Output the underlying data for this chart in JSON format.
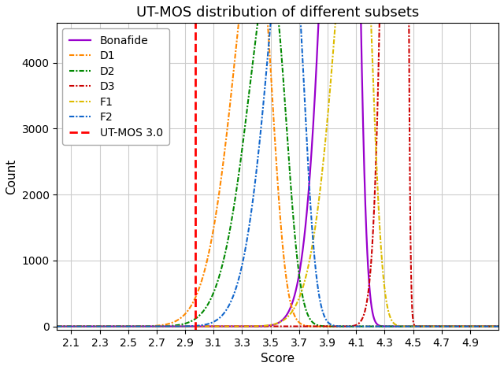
{
  "title": "UT-MOS distribution of different subsets",
  "xlabel": "Score",
  "ylabel": "Count",
  "xlim": [
    2.0,
    5.1
  ],
  "ylim": [
    -50,
    4600
  ],
  "xticks": [
    2.1,
    2.3,
    2.5,
    2.7,
    2.9,
    3.1,
    3.3,
    3.5,
    3.7,
    3.9,
    4.1,
    4.3,
    4.5,
    4.7,
    4.9
  ],
  "yticks": [
    0,
    1000,
    2000,
    3000,
    4000
  ],
  "vline_x": 2.97,
  "vline_color": "#ff0000",
  "curves": [
    {
      "label": "Bonafide",
      "color": "#9900cc",
      "linestyle": "solid",
      "linewidth": 1.6,
      "mean": 4.1,
      "std": 0.16,
      "scale": 3600,
      "skew": -3.0,
      "type": "skewnorm"
    },
    {
      "label": "D1",
      "color": "#ff8800",
      "linestyle": "dashdot",
      "linewidth": 1.5,
      "mean": 3.5,
      "std": 0.22,
      "scale": 2150,
      "skew": -2.5,
      "type": "skewnorm"
    },
    {
      "label": "D2",
      "color": "#008800",
      "linestyle": "dashdot",
      "linewidth": 1.5,
      "mean": 3.6,
      "std": 0.22,
      "scale": 1880,
      "skew": -2.5,
      "type": "skewnorm"
    },
    {
      "label": "D3",
      "color": "#cc0000",
      "linestyle": "dashdot",
      "linewidth": 1.5,
      "mean": 4.45,
      "std": 0.09,
      "scale": 4380,
      "skew": -5.0,
      "type": "skewnorm"
    },
    {
      "label": "F1",
      "color": "#ddbb00",
      "linestyle": "dashdot",
      "linewidth": 1.5,
      "mean": 4.2,
      "std": 0.2,
      "scale": 2450,
      "skew": -3.0,
      "type": "skewnorm"
    },
    {
      "label": "F2",
      "color": "#1166cc",
      "linestyle": "dashdot",
      "linewidth": 1.5,
      "mean": 3.72,
      "std": 0.2,
      "scale": 2120,
      "skew": -2.5,
      "type": "skewnorm"
    }
  ],
  "background_color": "#ffffff",
  "grid_color": "#cccccc",
  "title_fontsize": 13,
  "label_fontsize": 11,
  "tick_fontsize": 10,
  "legend_fontsize": 10
}
